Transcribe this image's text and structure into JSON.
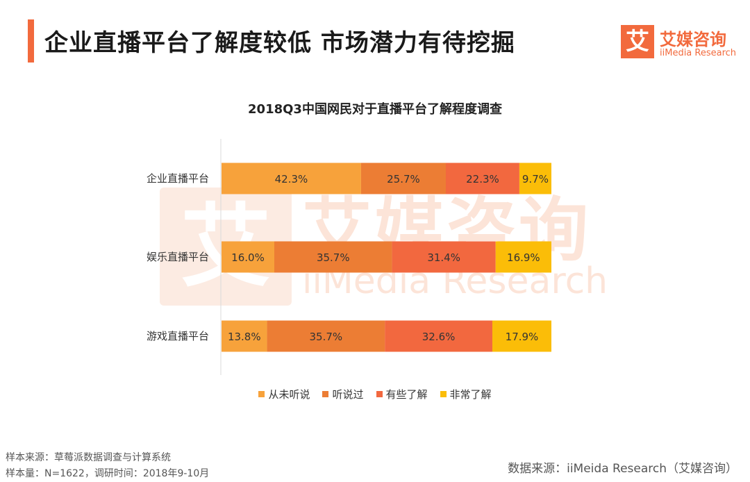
{
  "header": {
    "title": "企业直播平台了解度较低  市场潜力有待挖掘"
  },
  "logo": {
    "glyph": "艾",
    "name_cn": "艾媒咨询",
    "name_en": "iiMedia Research"
  },
  "watermark": {
    "glyph": "艾",
    "name_cn": "艾媒咨询",
    "name_en": "iiMedia Research"
  },
  "colors": {
    "accent": "#f26a3d",
    "series": [
      "#f7a23b",
      "#ec7d34",
      "#f2683f",
      "#fbbd08"
    ]
  },
  "chart_data": {
    "type": "bar",
    "orientation": "horizontal",
    "stacked": true,
    "title": "2018Q3中国网民对于直播平台了解程度调查",
    "categories": [
      "企业直播平台",
      "娱乐直播平台",
      "游戏直播平台"
    ],
    "series": [
      {
        "name": "从未听说",
        "values": [
          42.3,
          16.0,
          13.8
        ],
        "labels": [
          "42.3%",
          "16.0%",
          "13.8%"
        ]
      },
      {
        "name": "听说过",
        "values": [
          25.7,
          35.7,
          35.7
        ],
        "labels": [
          "25.7%",
          "35.7%",
          "35.7%"
        ]
      },
      {
        "name": "有些了解",
        "values": [
          22.3,
          31.4,
          32.6
        ],
        "labels": [
          "22.3%",
          "31.4%",
          "32.6%"
        ]
      },
      {
        "name": "非常了解",
        "values": [
          9.7,
          16.9,
          17.9
        ],
        "labels": [
          "9.7%",
          "16.9%",
          "17.9%"
        ]
      }
    ],
    "xlim": [
      0,
      100
    ],
    "grid": false,
    "legend": "bottom"
  },
  "footer": {
    "source_note": "样本来源：草莓派数据调查与计算系统",
    "sample_note": "样本量：N=1622，调研时间：2018年9-10月",
    "data_source": "数据来源：iiMeida  Research（艾媒咨询）"
  }
}
